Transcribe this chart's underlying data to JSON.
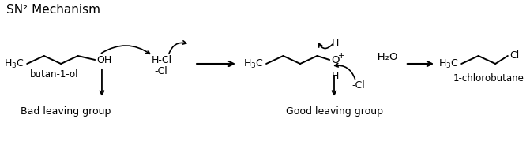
{
  "title": "SN² Mechanism",
  "bg_color": "#ffffff",
  "text_color": "#000000",
  "label_bad": "Bad leaving group",
  "label_good": "Good leaving group",
  "label_butan": "butan-1-ol",
  "label_chloro": "1-chlorobutane",
  "label_hcl": "H-Cl",
  "label_minus_cl": "-Cl⁻",
  "label_minus_h2o": "-H₂O",
  "label_cl_end": "Cl",
  "figw": 6.71,
  "figh": 1.93,
  "dpi": 100
}
